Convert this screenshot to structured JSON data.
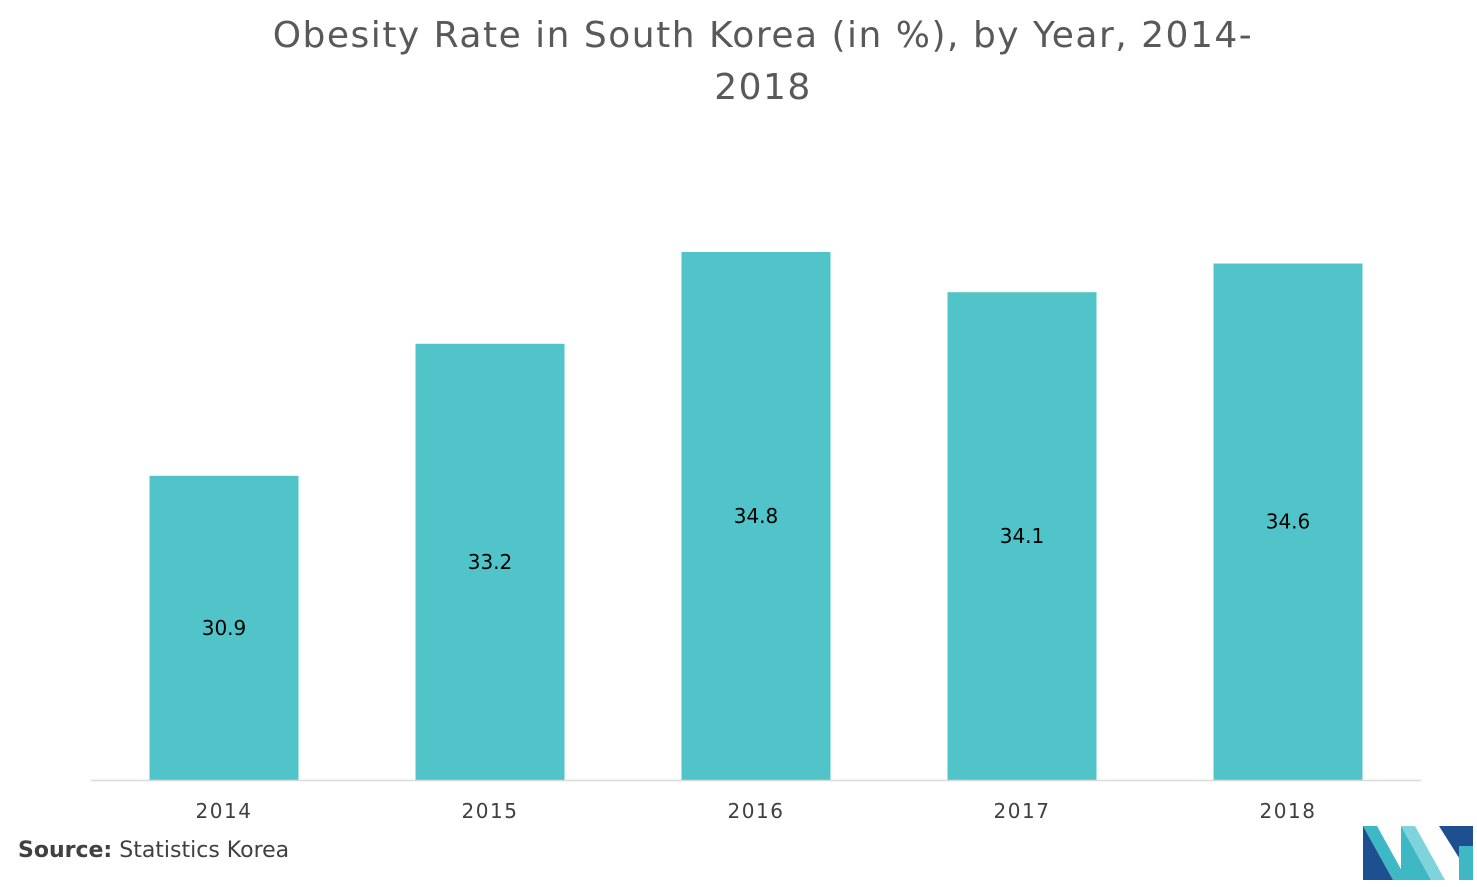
{
  "chart_data": {
    "type": "bar",
    "title": "Obesity Rate in South Korea (in %), by Year, 2014-2018",
    "categories": [
      "2014",
      "2015",
      "2016",
      "2017",
      "2018"
    ],
    "values": [
      30.9,
      33.2,
      34.8,
      34.1,
      34.6
    ],
    "data_labels": [
      "30.9",
      "33.2",
      "34.8",
      "34.1",
      "34.6"
    ],
    "xlabel": "",
    "ylabel": "",
    "ylim": [
      25.6,
      34.8
    ],
    "y_axis_visible": false,
    "grid": false,
    "legend": "none",
    "bar_color": "#50c4c8",
    "axis_color": "#d9d9d9",
    "tick_label_color": "#404040",
    "data_label_color": "#000000"
  },
  "source": {
    "label": "Source:",
    "text": "Statistics Korea"
  },
  "logo": {
    "icon": "mordor-intelligence-logo",
    "colors": [
      "#1d4f91",
      "#3fb8c6",
      "#7ed3dc"
    ]
  }
}
